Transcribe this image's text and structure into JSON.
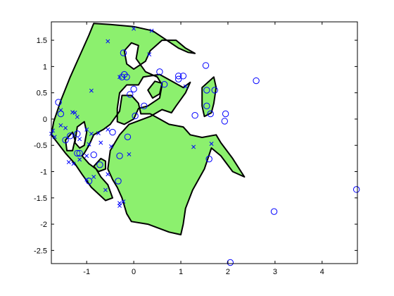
{
  "chart_data": {
    "type": "scatter",
    "xlim": [
      -1.75,
      4.75
    ],
    "ylim": [
      -2.75,
      1.85
    ],
    "xticks": [
      "-1",
      "0",
      "1",
      "2",
      "3",
      "4"
    ],
    "xtick_values": [
      -1,
      0,
      1,
      2,
      3,
      4
    ],
    "yticks": [
      "1.5",
      "1",
      "0.5",
      "0",
      "-0.5",
      "-1",
      "-1.5",
      "-2",
      "-2.5"
    ],
    "ytick_values": [
      1.5,
      1,
      0.5,
      0,
      -0.5,
      -1,
      -1.5,
      -2,
      -2.5
    ],
    "grid": false,
    "legend": "none",
    "colors": {
      "region_fill": "#8cf06e",
      "boundary": "#000000",
      "markers": "#0000ff"
    },
    "decision_region": {
      "outer": [
        [
          -1.75,
          -0.3
        ],
        [
          -1.7,
          -0.05
        ],
        [
          -1.55,
          0.35
        ],
        [
          -1.35,
          0.8
        ],
        [
          -1.2,
          1.1
        ],
        [
          -1.05,
          1.4
        ],
        [
          -0.95,
          1.6
        ],
        [
          -0.85,
          1.82
        ],
        [
          -0.5,
          1.8
        ],
        [
          0,
          1.76
        ],
        [
          0.4,
          1.68
        ],
        [
          0.7,
          1.5
        ],
        [
          0.95,
          1.35
        ],
        [
          1.15,
          1.27
        ],
        [
          1.3,
          1.25
        ],
        [
          1.1,
          1.35
        ],
        [
          0.9,
          1.5
        ],
        [
          0.6,
          1.5
        ],
        [
          0.35,
          1.3
        ],
        [
          0.25,
          1.1
        ],
        [
          0,
          0.95
        ],
        [
          -0.15,
          1.05
        ],
        [
          -0.2,
          1.3
        ],
        [
          -0.05,
          1.45
        ],
        [
          0.1,
          1.4
        ],
        [
          0.05,
          1.15
        ],
        [
          0.25,
          0.9
        ],
        [
          0.5,
          0.8
        ],
        [
          0.6,
          0.65
        ],
        [
          0.55,
          0.4
        ],
        [
          0.3,
          0.25
        ],
        [
          0.1,
          0.2
        ],
        [
          0,
          0.0
        ],
        [
          -0.2,
          -0.1
        ],
        [
          -0.35,
          -0.05
        ],
        [
          -0.35,
          0.2
        ],
        [
          -0.3,
          0.5
        ],
        [
          -0.15,
          0.65
        ],
        [
          0.1,
          0.65
        ],
        [
          0.2,
          0.8
        ],
        [
          0.55,
          0.85
        ],
        [
          0.85,
          0.7
        ],
        [
          1.05,
          0.6
        ],
        [
          1.2,
          0.7
        ],
        [
          1.1,
          0.5
        ],
        [
          0.9,
          0.25
        ],
        [
          0.8,
          0.12
        ],
        [
          0.6,
          0.18
        ],
        [
          0.35,
          0.05
        ],
        [
          0.05,
          -0.05
        ],
        [
          -0.1,
          -0.1
        ],
        [
          -0.3,
          -0.3
        ],
        [
          -0.5,
          -0.6
        ],
        [
          -0.55,
          -0.95
        ],
        [
          -0.45,
          -1.15
        ],
        [
          -0.35,
          -1.3
        ],
        [
          -0.25,
          -1.5
        ],
        [
          -0.15,
          -1.8
        ],
        [
          -0.05,
          -1.95
        ],
        [
          0.3,
          -2.0
        ],
        [
          0.75,
          -2.15
        ],
        [
          1.0,
          -2.2
        ],
        [
          1.05,
          -2.0
        ],
        [
          1.1,
          -1.7
        ],
        [
          1.25,
          -1.35
        ],
        [
          1.5,
          -0.95
        ],
        [
          1.65,
          -0.55
        ],
        [
          1.85,
          -0.7
        ],
        [
          2.1,
          -1.0
        ],
        [
          2.35,
          -1.1
        ],
        [
          2.1,
          -0.75
        ],
        [
          1.85,
          -0.45
        ],
        [
          1.75,
          -0.3
        ],
        [
          1.45,
          -0.35
        ],
        [
          1.2,
          -0.3
        ],
        [
          1.05,
          -0.15
        ],
        [
          0.75,
          -0.1
        ],
        [
          0.55,
          0.0
        ],
        [
          0.35,
          0.1
        ],
        [
          0.15,
          0.1
        ],
        [
          0.1,
          0.3
        ],
        [
          -0.05,
          0.45
        ],
        [
          -0.25,
          0.45
        ],
        [
          -0.3,
          0.15
        ],
        [
          -0.5,
          -0.1
        ],
        [
          -0.65,
          -0.2
        ],
        [
          -0.85,
          -0.3
        ],
        [
          -0.95,
          -0.5
        ],
        [
          -1.05,
          -0.65
        ],
        [
          -1.1,
          -0.7
        ],
        [
          -0.95,
          -0.85
        ],
        [
          -0.8,
          -0.95
        ],
        [
          -0.7,
          -1.1
        ],
        [
          -0.55,
          -1.25
        ],
        [
          -0.45,
          -1.5
        ],
        [
          -0.6,
          -1.55
        ],
        [
          -0.9,
          -1.3
        ],
        [
          -1.1,
          -1.05
        ],
        [
          -1.25,
          -0.85
        ],
        [
          -1.45,
          -0.65
        ],
        [
          -1.75,
          -0.3
        ]
      ],
      "islands": [
        [
          [
            0.3,
            0.55
          ],
          [
            0.45,
            0.72
          ],
          [
            0.6,
            0.68
          ],
          [
            0.55,
            0.48
          ],
          [
            0.4,
            0.4
          ],
          [
            0.3,
            0.55
          ]
        ],
        [
          [
            1.45,
            0.6
          ],
          [
            1.6,
            0.72
          ],
          [
            1.7,
            0.8
          ],
          [
            1.75,
            0.6
          ],
          [
            1.7,
            0.3
          ],
          [
            1.65,
            0.12
          ],
          [
            1.5,
            0.05
          ],
          [
            1.45,
            0.25
          ],
          [
            1.45,
            0.6
          ]
        ]
      ],
      "holes": [
        [
          [
            -1.2,
            -0.15
          ],
          [
            -1.05,
            -0.05
          ],
          [
            -1.0,
            -0.25
          ],
          [
            -1.05,
            -0.5
          ],
          [
            -1.15,
            -0.55
          ],
          [
            -1.25,
            -0.45
          ],
          [
            -1.2,
            -0.15
          ]
        ],
        [
          [
            -1.45,
            -0.4
          ],
          [
            -1.3,
            -0.25
          ],
          [
            -1.25,
            -0.4
          ],
          [
            -1.3,
            -0.6
          ],
          [
            -1.42,
            -0.6
          ],
          [
            -1.45,
            -0.4
          ]
        ],
        [
          [
            -0.85,
            -0.9
          ],
          [
            -0.7,
            -0.75
          ],
          [
            -0.6,
            -0.8
          ],
          [
            -0.6,
            -0.95
          ],
          [
            -0.75,
            -1.0
          ],
          [
            -0.85,
            -0.9
          ]
        ]
      ]
    },
    "series": [
      {
        "marker": "o",
        "points": [
          [
            -0.22,
            1.26
          ],
          [
            -0.15,
            0.8
          ],
          [
            -0.25,
            0.8
          ],
          [
            -0.2,
            0.85
          ],
          [
            0.55,
            0.9
          ],
          [
            0.65,
            0.66
          ],
          [
            0.95,
            0.82
          ],
          [
            1.05,
            0.82
          ],
          [
            0.95,
            0.76
          ],
          [
            1.53,
            1.02
          ],
          [
            1.55,
            0.55
          ],
          [
            1.55,
            0.25
          ],
          [
            1.63,
            0.1
          ],
          [
            1.72,
            0.55
          ],
          [
            1.95,
            0.1
          ],
          [
            1.93,
            -0.04
          ],
          [
            2.6,
            0.73
          ],
          [
            0.22,
            0.25
          ],
          [
            0.03,
            0.06
          ],
          [
            -0.08,
            0.47
          ],
          [
            0.0,
            0.57
          ],
          [
            -0.45,
            -0.25
          ],
          [
            -0.13,
            -0.34
          ],
          [
            -0.3,
            -0.7
          ],
          [
            -0.33,
            -1.18
          ],
          [
            -0.72,
            -0.87
          ],
          [
            -0.95,
            -1.18
          ],
          [
            -1.2,
            -0.28
          ],
          [
            -1.15,
            -0.65
          ],
          [
            -1.2,
            -0.65
          ],
          [
            -1.45,
            -0.4
          ],
          [
            -1.35,
            -0.32
          ],
          [
            -1.55,
            0.1
          ],
          [
            -1.6,
            0.32
          ],
          [
            -0.85,
            -0.68
          ],
          [
            1.6,
            -0.76
          ],
          [
            1.3,
            0.07
          ],
          [
            4.73,
            -1.34
          ],
          [
            2.98,
            -1.76
          ],
          [
            2.05,
            -2.73
          ]
        ]
      },
      {
        "marker": "x",
        "points": [
          [
            -0.55,
            1.48
          ],
          [
            0.0,
            1.72
          ],
          [
            0.38,
            1.68
          ],
          [
            0.33,
            1.23
          ],
          [
            1.1,
            0.62
          ],
          [
            1.65,
            -0.47
          ],
          [
            1.27,
            -0.53
          ],
          [
            -0.9,
            0.54
          ],
          [
            -1.3,
            0.13
          ],
          [
            -1.2,
            0.04
          ],
          [
            -1.0,
            -0.2
          ],
          [
            -0.9,
            -0.28
          ],
          [
            -1.15,
            -0.38
          ],
          [
            -1.45,
            -0.17
          ],
          [
            -1.55,
            -0.12
          ],
          [
            -1.72,
            -0.22
          ],
          [
            -1.75,
            -0.28
          ],
          [
            -1.68,
            -0.34
          ],
          [
            -0.75,
            -0.27
          ],
          [
            -0.55,
            -0.2
          ],
          [
            -0.7,
            -0.45
          ],
          [
            -0.48,
            -0.52
          ],
          [
            -0.1,
            -0.67
          ],
          [
            -0.95,
            -0.48
          ],
          [
            -1.0,
            -0.7
          ],
          [
            -1.15,
            -0.77
          ],
          [
            -1.28,
            -0.85
          ],
          [
            -1.38,
            -0.82
          ],
          [
            -0.55,
            -1.05
          ],
          [
            -0.85,
            -1.1
          ],
          [
            -0.6,
            -1.35
          ],
          [
            -0.3,
            -1.6
          ],
          [
            -0.22,
            -1.57
          ],
          [
            -0.3,
            -1.65
          ],
          [
            -1.0,
            -1.15
          ],
          [
            -1.55,
            0.17
          ],
          [
            -1.25,
            0.12
          ],
          [
            -0.3,
            0.8
          ]
        ]
      }
    ]
  }
}
